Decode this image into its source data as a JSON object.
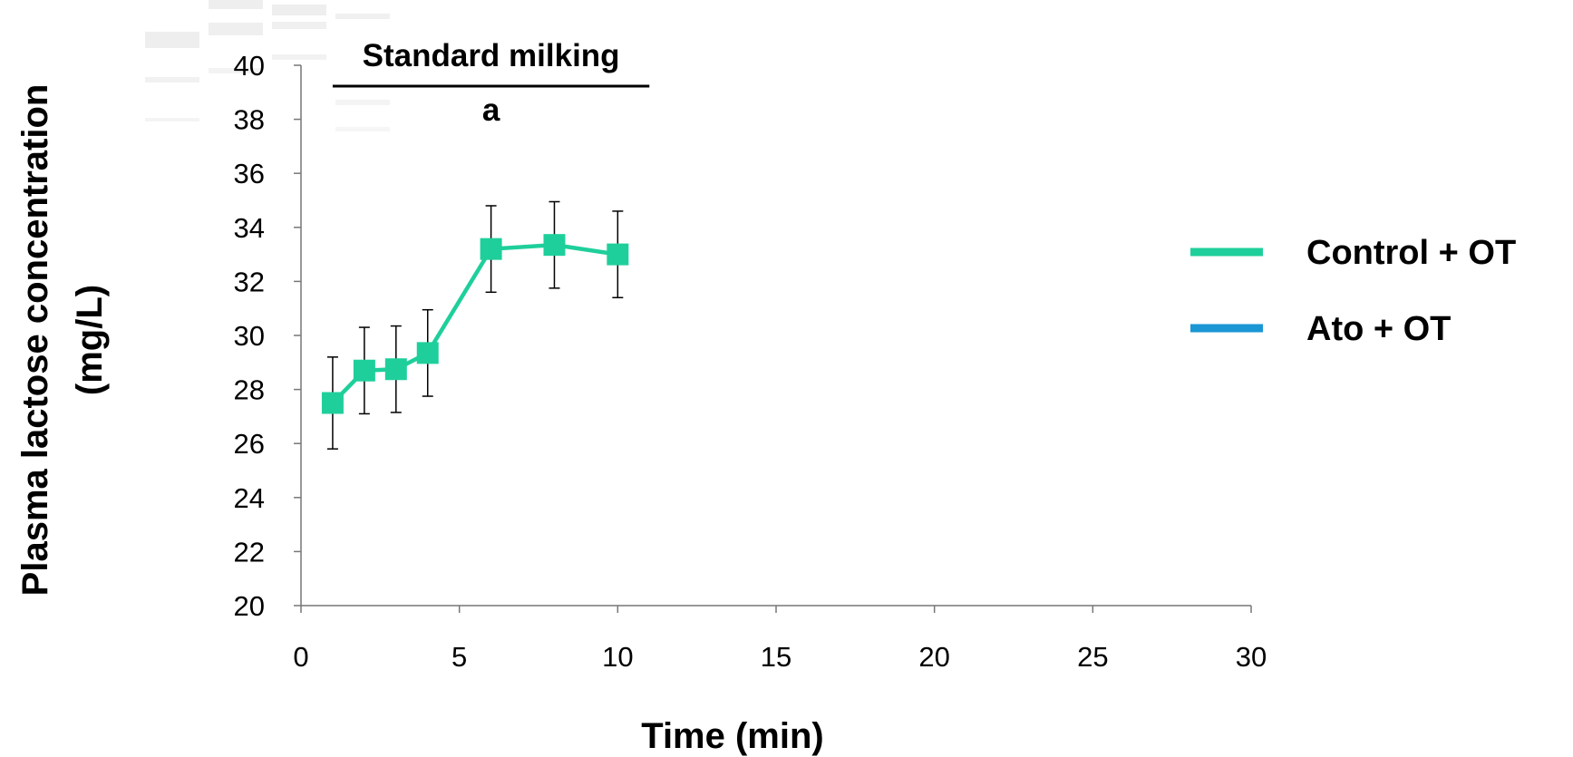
{
  "chart_data": {
    "type": "line",
    "xlabel": "Time (min)",
    "ylabel_line1": "Plasma lactose concentration",
    "ylabel_line2": "(mg/L)",
    "xlim": [
      0,
      30
    ],
    "ylim": [
      20,
      40
    ],
    "x_ticks": [
      0,
      5,
      10,
      15,
      20,
      25,
      30
    ],
    "y_ticks": [
      20,
      22,
      24,
      26,
      28,
      30,
      32,
      34,
      36,
      38,
      40
    ],
    "grid": false,
    "legend_position": "right",
    "annotation": {
      "label": "Standard milking",
      "sublabel": "a",
      "x_range": [
        1,
        11
      ]
    },
    "series": [
      {
        "name": "Control + OT",
        "color": "#1fcf9b",
        "marker": "square",
        "x": [
          1,
          2,
          3,
          4,
          6,
          8,
          10
        ],
        "y": [
          27.5,
          28.7,
          28.75,
          29.35,
          33.2,
          33.35,
          33.0
        ],
        "error": [
          1.7,
          1.6,
          1.6,
          1.6,
          1.6,
          1.6,
          1.6
        ]
      },
      {
        "name": "Ato + OT",
        "color": "#1a96d4",
        "marker": "square",
        "x": [],
        "y": [],
        "error": []
      }
    ]
  }
}
